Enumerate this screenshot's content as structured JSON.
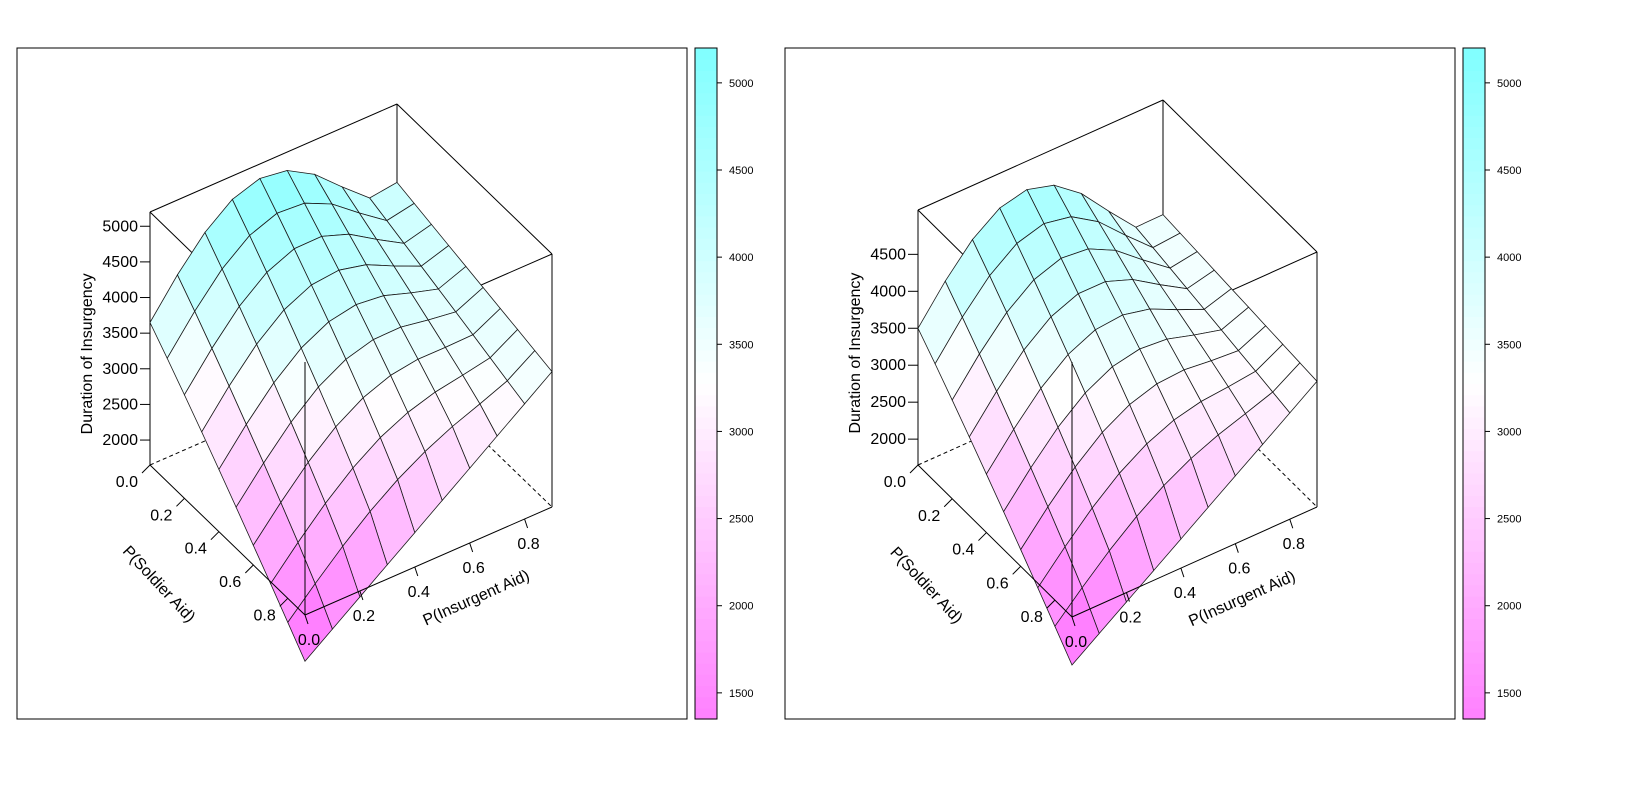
{
  "colors": {
    "low": "#ff80ff",
    "mid": "#ffffff",
    "high": "#80ffff",
    "frame": "#000000",
    "mesh": "#1a1a1a"
  },
  "chart_data": [
    {
      "type": "surface3d",
      "zlabel": "Duration of Insurgency",
      "xlabel": "P(Insurgent Aid)",
      "ylabel": "P(Soldier Aid)",
      "x_ticks": [
        "0.0",
        "0.2",
        "0.4",
        "0.6",
        "0.8"
      ],
      "y_ticks": [
        "0.0",
        "0.2",
        "0.4",
        "0.6",
        "0.8"
      ],
      "z_ticks": [
        "2000",
        "2500",
        "3000",
        "3500",
        "4000",
        "4500",
        "5000"
      ],
      "zlim": [
        1700,
        5000
      ],
      "grid_x": [
        0.0,
        0.1,
        0.2,
        0.3,
        0.4,
        0.5,
        0.6,
        0.7,
        0.8,
        0.9
      ],
      "grid_y": [
        0.0,
        0.1,
        0.2,
        0.3,
        0.4,
        0.5,
        0.6,
        0.7,
        0.8,
        0.9
      ],
      "corner_values": {
        "xmin_ymin": 3650,
        "xmax_ymin": 4100,
        "xmin_ymax": 1350,
        "xmax_ymax": 3550,
        "peak_near_xmax_ymin": 5150
      },
      "colorkey": {
        "range": [
          1350,
          5200
        ],
        "ticks": [
          "1500",
          "2000",
          "2500",
          "3000",
          "3500",
          "4000",
          "4500",
          "5000"
        ]
      }
    },
    {
      "type": "surface3d",
      "zlabel": "Duration of Insurgency",
      "xlabel": "P(Insurgent Aid)",
      "ylabel": "P(Soldier Aid)",
      "x_ticks": [
        "0.0",
        "0.2",
        "0.4",
        "0.6",
        "0.8"
      ],
      "y_ticks": [
        "0.0",
        "0.2",
        "0.4",
        "0.6",
        "0.8"
      ],
      "z_ticks": [
        "2000",
        "2500",
        "3000",
        "3500",
        "4000",
        "4500"
      ],
      "zlim": [
        1700,
        4900
      ],
      "grid_x": [
        0.0,
        0.1,
        0.2,
        0.3,
        0.4,
        0.5,
        0.6,
        0.7,
        0.8,
        0.9
      ],
      "grid_y": [
        0.0,
        0.1,
        0.2,
        0.3,
        0.4,
        0.5,
        0.6,
        0.7,
        0.8,
        0.9
      ],
      "corner_values": {
        "xmin_ymin": 3500,
        "xmax_ymin": 3550,
        "xmin_ymax": 1350,
        "xmax_ymax": 3350,
        "peak_near_xmax_ymin": 4850
      },
      "colorkey": {
        "range": [
          1350,
          5200
        ],
        "ticks": [
          "1500",
          "2000",
          "2500",
          "3000",
          "3500",
          "4000",
          "4500",
          "5000"
        ]
      }
    }
  ]
}
